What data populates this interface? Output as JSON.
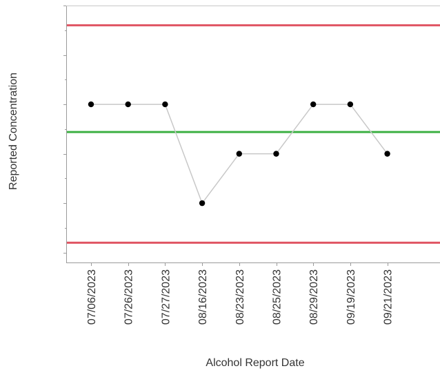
{
  "chart_data": {
    "type": "line",
    "xlabel": "Alcohol Report Date",
    "ylabel": "Reported Concentration",
    "categories": [
      "07/06/2023",
      "07/26/2023",
      "07/27/2023",
      "08/16/2023",
      "08/23/2023",
      "08/25/2023",
      "08/29/2023",
      "09/19/2023",
      "09/21/2023"
    ],
    "series": [
      {
        "values": [
          4,
          4,
          4,
          2,
          3,
          3,
          4,
          4,
          3
        ]
      }
    ],
    "reference_lines": [
      {
        "kind": "upper-limit",
        "value": 5.6,
        "color": "#e05563"
      },
      {
        "kind": "center",
        "value": 3.44,
        "color": "#3cb043"
      },
      {
        "kind": "lower-limit",
        "value": 1.2,
        "color": "#e05563"
      }
    ],
    "ylim": [
      0.8,
      6.0
    ],
    "yticks": [
      1,
      1.5,
      2,
      2.5,
      3,
      3.5,
      4,
      4.5,
      5,
      5.5,
      6
    ],
    "y_tick_labels_shown": false,
    "grid": false,
    "colors": {
      "line": "#c8c8c8",
      "points": "#000000",
      "axis": "#9a9a9a"
    }
  }
}
